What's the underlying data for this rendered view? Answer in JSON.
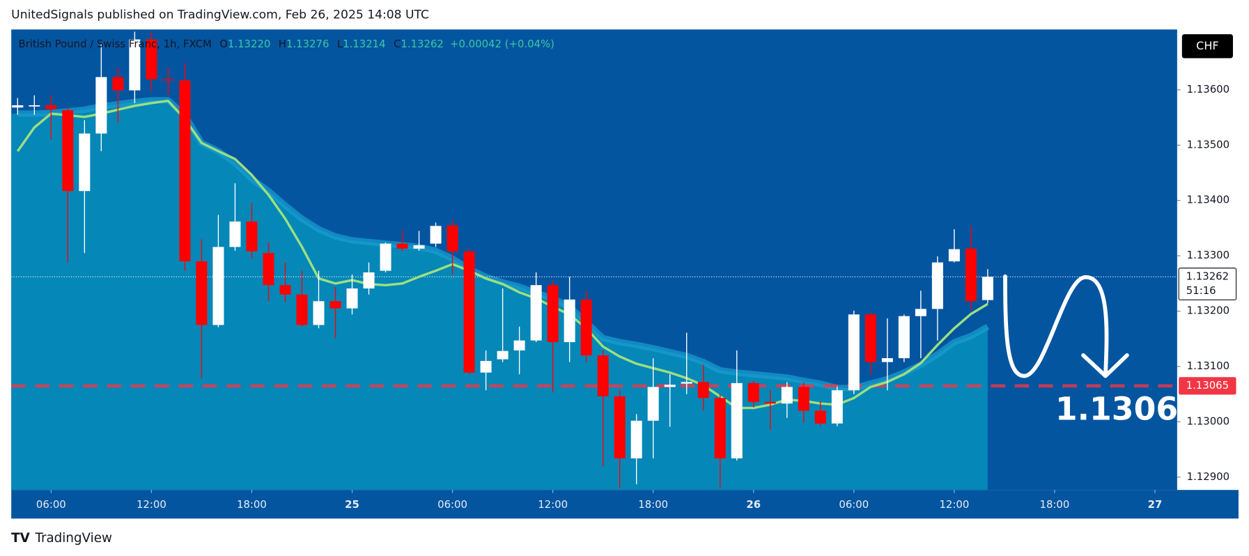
{
  "chart_data": {
    "type": "candlestick",
    "header": "UnitedSignals published on TradingView.com, Feb 26, 2025 14:08 UTC",
    "brand": "TradingView",
    "currency": "CHF",
    "legend": {
      "symbol": "British Pound / Swiss Franc, 1h, FXCM",
      "ohlc": [
        {
          "key": "O",
          "value": "1.13220"
        },
        {
          "key": "H",
          "value": "1.13276"
        },
        {
          "key": "L",
          "value": "1.13214"
        },
        {
          "key": "C",
          "value": "1.13262"
        }
      ],
      "change": "+0.00042 (+0.04%)"
    },
    "candles": {
      "up_color": "#ffffff",
      "down_color": "#ff0000",
      "open": [
        1.13568,
        1.1357,
        1.13572,
        1.13563,
        1.13417,
        1.13521,
        1.13623,
        1.13599,
        1.13691,
        1.13619,
        1.13617,
        1.1329,
        1.13175,
        1.13316,
        1.13362,
        1.13305,
        1.13247,
        1.1323,
        1.13175,
        1.13218,
        1.13205,
        1.13241,
        1.13273,
        1.13322,
        1.13313,
        1.13322,
        1.13355,
        1.13308,
        1.13089,
        1.13113,
        1.13129,
        1.13147,
        1.13247,
        1.13144,
        1.13221,
        1.1312,
        1.13046,
        1.12934,
        1.13002,
        1.13063,
        1.13069,
        1.13072,
        1.13043,
        1.12934,
        1.1307,
        1.13036,
        1.13033,
        1.13063,
        1.1302,
        1.12997,
        1.13057,
        1.13194,
        1.13108,
        1.13115,
        1.13191,
        1.13204,
        1.1329,
        1.13313,
        1.1322
      ],
      "high": [
        1.13585,
        1.1359,
        1.1359,
        1.13568,
        1.13545,
        1.13683,
        1.1364,
        1.13705,
        1.13705,
        1.1364,
        1.13648,
        1.1333,
        1.13374,
        1.13431,
        1.13395,
        1.13324,
        1.13288,
        1.13273,
        1.13273,
        1.13244,
        1.13266,
        1.13288,
        1.13324,
        1.13345,
        1.13345,
        1.1336,
        1.13365,
        1.13313,
        1.13129,
        1.13241,
        1.13172,
        1.1327,
        1.13256,
        1.13262,
        1.13237,
        1.13129,
        1.13057,
        1.13014,
        1.13115,
        1.13086,
        1.13161,
        1.13103,
        1.1305,
        1.13129,
        1.13074,
        1.13057,
        1.13072,
        1.13072,
        1.13036,
        1.13064,
        1.13201,
        1.13198,
        1.13187,
        1.13194,
        1.13237,
        1.13299,
        1.13348,
        1.13354,
        1.13276
      ],
      "low": [
        1.13555,
        1.13555,
        1.1351,
        1.13288,
        1.13305,
        1.13489,
        1.1354,
        1.13576,
        1.13597,
        1.1359,
        1.13273,
        1.13079,
        1.13171,
        1.13309,
        1.13295,
        1.13218,
        1.13216,
        1.13172,
        1.13169,
        1.13151,
        1.13194,
        1.1323,
        1.1327,
        1.13309,
        1.13309,
        1.13316,
        1.13266,
        1.13086,
        1.13057,
        1.13108,
        1.13086,
        1.13144,
        1.13053,
        1.13108,
        1.13108,
        1.1292,
        1.12881,
        1.12887,
        1.12934,
        1.12991,
        1.1305,
        1.13021,
        1.12881,
        1.1293,
        1.13026,
        1.12985,
        1.13007,
        1.12999,
        1.12992,
        1.12992,
        1.1305,
        1.13086,
        1.13057,
        1.13108,
        1.13115,
        1.13147,
        1.13288,
        1.13204,
        1.13214
      ],
      "close": [
        1.13572,
        1.13572,
        1.13565,
        1.13417,
        1.13521,
        1.13623,
        1.13599,
        1.13691,
        1.13619,
        1.13617,
        1.1329,
        1.13175,
        1.13316,
        1.13362,
        1.13308,
        1.13247,
        1.1323,
        1.13175,
        1.13218,
        1.13205,
        1.13241,
        1.1327,
        1.13322,
        1.13313,
        1.13319,
        1.13354,
        1.13308,
        1.13089,
        1.1311,
        1.13128,
        1.13147,
        1.13247,
        1.13144,
        1.13221,
        1.1312,
        1.13046,
        1.12934,
        1.13002,
        1.13063,
        1.13067,
        1.13072,
        1.13043,
        1.12934,
        1.1307,
        1.13036,
        1.13033,
        1.13063,
        1.1302,
        1.12997,
        1.13057,
        1.13194,
        1.13108,
        1.13115,
        1.13191,
        1.13204,
        1.13288,
        1.13312,
        1.13218,
        1.13262
      ]
    },
    "ma_fast": {
      "color": "#9be07f",
      "values": [
        1.13489,
        1.13532,
        1.13557,
        1.13554,
        1.13551,
        1.13557,
        1.13564,
        1.13571,
        1.13576,
        1.1358,
        1.13547,
        1.13504,
        1.13489,
        1.13475,
        1.13446,
        1.1341,
        1.13367,
        1.13316,
        1.13259,
        1.1325,
        1.13256,
        1.13249,
        1.13247,
        1.1325,
        1.13262,
        1.13273,
        1.13285,
        1.13273,
        1.13259,
        1.13249,
        1.13234,
        1.13223,
        1.13208,
        1.13194,
        1.13169,
        1.13136,
        1.13118,
        1.13105,
        1.13097,
        1.13089,
        1.13079,
        1.13066,
        1.13046,
        1.13025,
        1.13025,
        1.13031,
        1.1304,
        1.13038,
        1.13033,
        1.13031,
        1.13043,
        1.13063,
        1.13072,
        1.13086,
        1.13106,
        1.13139,
        1.13169,
        1.13195,
        1.13213
      ]
    },
    "ma_slow": {
      "color": "#1a9fd0",
      "fill": "#0587b8",
      "values": [
        1.13557,
        1.13557,
        1.13558,
        1.13561,
        1.13564,
        1.1357,
        1.13574,
        1.13578,
        1.13581,
        1.13581,
        1.13554,
        1.13504,
        1.13489,
        1.13468,
        1.13439,
        1.13417,
        1.13391,
        1.13367,
        1.13348,
        1.13335,
        1.13328,
        1.13325,
        1.13322,
        1.13319,
        1.13316,
        1.13309,
        1.13295,
        1.13276,
        1.13262,
        1.13252,
        1.13244,
        1.13233,
        1.13223,
        1.13208,
        1.1318,
        1.13151,
        1.13144,
        1.13139,
        1.13133,
        1.13126,
        1.13119,
        1.13108,
        1.13093,
        1.13089,
        1.13086,
        1.13083,
        1.1308,
        1.13074,
        1.13069,
        1.13061,
        1.13061,
        1.13069,
        1.13077,
        1.13089,
        1.13103,
        1.13122,
        1.13144,
        1.13155,
        1.13172
      ]
    },
    "last_price": {
      "value": 1.13262,
      "countdown": "51:16"
    },
    "level": {
      "value": 1.13065,
      "color": "#f23645"
    },
    "annotation": "1.1306",
    "xlim": [
      -0.38,
      69.33
    ],
    "xticks": [
      {
        "value": 2,
        "label": "06:00"
      },
      {
        "value": 8,
        "label": "12:00"
      },
      {
        "value": 14,
        "label": "18:00"
      },
      {
        "value": 20,
        "label": "25"
      },
      {
        "value": 26,
        "label": "06:00"
      },
      {
        "value": 32,
        "label": "12:00"
      },
      {
        "value": 38,
        "label": "18:00"
      },
      {
        "value": 44,
        "label": "26"
      },
      {
        "value": 50,
        "label": "06:00"
      },
      {
        "value": 56,
        "label": "12:00"
      },
      {
        "value": 62,
        "label": "18:00"
      },
      {
        "value": 68,
        "label": "27"
      }
    ],
    "ylim": [
      1.12877,
      1.13709
    ],
    "yticks": [
      {
        "value": 1.129,
        "label": "1.12900"
      },
      {
        "value": 1.13,
        "label": "1.13000"
      },
      {
        "value": 1.131,
        "label": "1.13100"
      },
      {
        "value": 1.132,
        "label": "1.13200"
      },
      {
        "value": 1.133,
        "label": "1.13300"
      },
      {
        "value": 1.134,
        "label": "1.13400"
      },
      {
        "value": 1.135,
        "label": "1.13500"
      },
      {
        "value": 1.136,
        "label": "1.13600"
      }
    ]
  }
}
